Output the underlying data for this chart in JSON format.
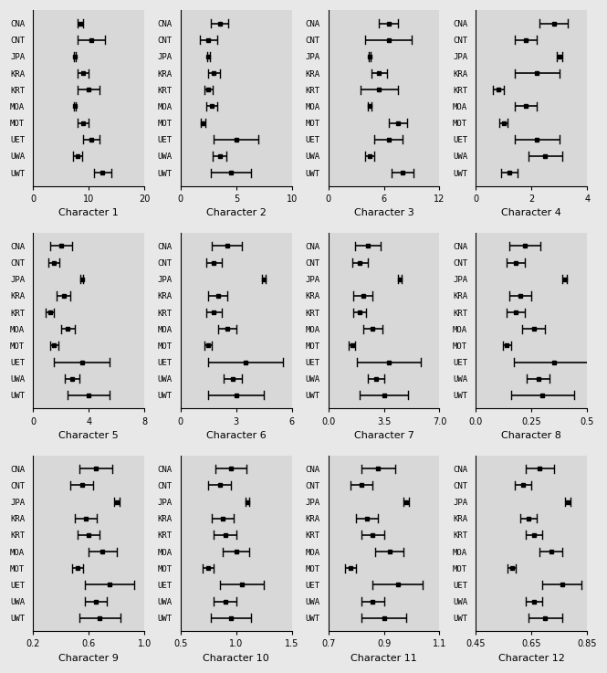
{
  "populations": [
    "CNA",
    "CNT",
    "JPA",
    "KRA",
    "KRT",
    "MOA",
    "MOT",
    "UET",
    "UWA",
    "UWT"
  ],
  "characters": [
    {
      "name": "Character 1",
      "xlim": [
        0,
        20
      ],
      "xticks": [
        0,
        10,
        20
      ],
      "means": [
        8.5,
        10.5,
        7.5,
        9.0,
        10.0,
        7.5,
        9.0,
        10.5,
        8.0,
        12.5
      ],
      "sds": [
        0.5,
        2.5,
        0.1,
        1.0,
        2.0,
        0.2,
        1.0,
        1.5,
        0.8,
        1.5
      ]
    },
    {
      "name": "Character 2",
      "xlim": [
        0,
        10
      ],
      "xticks": [
        0,
        5,
        10
      ],
      "means": [
        3.5,
        2.5,
        2.5,
        3.0,
        2.5,
        2.8,
        2.0,
        5.0,
        3.5,
        4.5
      ],
      "sds": [
        0.8,
        0.8,
        0.1,
        0.5,
        0.4,
        0.5,
        0.2,
        2.0,
        0.6,
        1.8
      ]
    },
    {
      "name": "Character 3",
      "xlim": [
        0,
        12
      ],
      "xticks": [
        0,
        6,
        12
      ],
      "means": [
        6.5,
        6.5,
        4.5,
        5.5,
        5.5,
        4.5,
        7.5,
        6.5,
        4.5,
        8.0
      ],
      "sds": [
        1.0,
        2.5,
        0.1,
        0.8,
        2.0,
        0.2,
        1.0,
        1.5,
        0.5,
        1.2
      ]
    },
    {
      "name": "Character 4",
      "xlim": [
        0,
        4
      ],
      "xticks": [
        0,
        2,
        4
      ],
      "means": [
        2.8,
        1.8,
        3.0,
        2.2,
        0.8,
        1.8,
        1.0,
        2.2,
        2.5,
        1.2
      ],
      "sds": [
        0.5,
        0.4,
        0.1,
        0.8,
        0.2,
        0.4,
        0.15,
        0.8,
        0.6,
        0.3
      ]
    },
    {
      "name": "Character 5",
      "xlim": [
        0,
        8
      ],
      "xticks": [
        0,
        4,
        8
      ],
      "means": [
        2.0,
        1.5,
        3.5,
        2.2,
        1.2,
        2.5,
        1.5,
        3.5,
        2.8,
        4.0
      ],
      "sds": [
        0.8,
        0.4,
        0.1,
        0.5,
        0.3,
        0.5,
        0.3,
        2.0,
        0.5,
        1.5
      ]
    },
    {
      "name": "Character 6",
      "xlim": [
        0,
        6
      ],
      "xticks": [
        0,
        3,
        6
      ],
      "means": [
        2.5,
        1.8,
        4.5,
        2.0,
        1.8,
        2.5,
        1.5,
        3.5,
        2.8,
        3.0
      ],
      "sds": [
        0.8,
        0.4,
        0.1,
        0.5,
        0.4,
        0.5,
        0.2,
        2.0,
        0.5,
        1.5
      ]
    },
    {
      "name": "Character 7",
      "xlim": [
        0.0,
        7.0
      ],
      "xticks": [
        0.0,
        3.5,
        7.0
      ],
      "means": [
        2.5,
        2.0,
        4.5,
        2.2,
        2.0,
        2.8,
        1.5,
        3.8,
        3.0,
        3.5
      ],
      "sds": [
        0.8,
        0.5,
        0.1,
        0.6,
        0.4,
        0.6,
        0.2,
        2.0,
        0.5,
        1.5
      ]
    },
    {
      "name": "Character 8",
      "xlim": [
        0.0,
        0.5
      ],
      "xticks": [
        0.0,
        0.25,
        0.5
      ],
      "means": [
        0.22,
        0.18,
        0.4,
        0.2,
        0.18,
        0.26,
        0.14,
        0.35,
        0.28,
        0.3
      ],
      "sds": [
        0.07,
        0.04,
        0.01,
        0.05,
        0.04,
        0.05,
        0.02,
        0.18,
        0.05,
        0.14
      ]
    },
    {
      "name": "Character 9",
      "xlim": [
        0.2,
        1.0
      ],
      "xticks": [
        0.2,
        0.6,
        1.0
      ],
      "means": [
        0.65,
        0.55,
        0.8,
        0.58,
        0.6,
        0.7,
        0.52,
        0.75,
        0.65,
        0.68
      ],
      "sds": [
        0.12,
        0.08,
        0.02,
        0.08,
        0.08,
        0.1,
        0.04,
        0.18,
        0.08,
        0.15
      ]
    },
    {
      "name": "Character 10",
      "xlim": [
        0.5,
        1.5
      ],
      "xticks": [
        0.5,
        1.0,
        1.5
      ],
      "means": [
        0.95,
        0.85,
        1.1,
        0.88,
        0.9,
        1.0,
        0.75,
        1.05,
        0.9,
        0.95
      ],
      "sds": [
        0.14,
        0.1,
        0.02,
        0.1,
        0.1,
        0.12,
        0.05,
        0.2,
        0.1,
        0.18
      ]
    },
    {
      "name": "Character 11",
      "xlim": [
        0.7,
        1.1
      ],
      "xticks": [
        0.7,
        0.9,
        1.1
      ],
      "means": [
        0.88,
        0.82,
        0.98,
        0.84,
        0.86,
        0.92,
        0.78,
        0.95,
        0.86,
        0.9
      ],
      "sds": [
        0.06,
        0.04,
        0.01,
        0.04,
        0.04,
        0.05,
        0.02,
        0.09,
        0.04,
        0.08
      ]
    },
    {
      "name": "Character 12",
      "xlim": [
        0.45,
        0.85
      ],
      "xticks": [
        0.45,
        0.65,
        0.85
      ],
      "means": [
        0.68,
        0.62,
        0.78,
        0.64,
        0.66,
        0.72,
        0.58,
        0.76,
        0.66,
        0.7
      ],
      "sds": [
        0.05,
        0.03,
        0.01,
        0.03,
        0.03,
        0.04,
        0.015,
        0.07,
        0.03,
        0.06
      ]
    }
  ],
  "bg_color": "#e8e8e8",
  "plot_bg": "#d8d8d8"
}
